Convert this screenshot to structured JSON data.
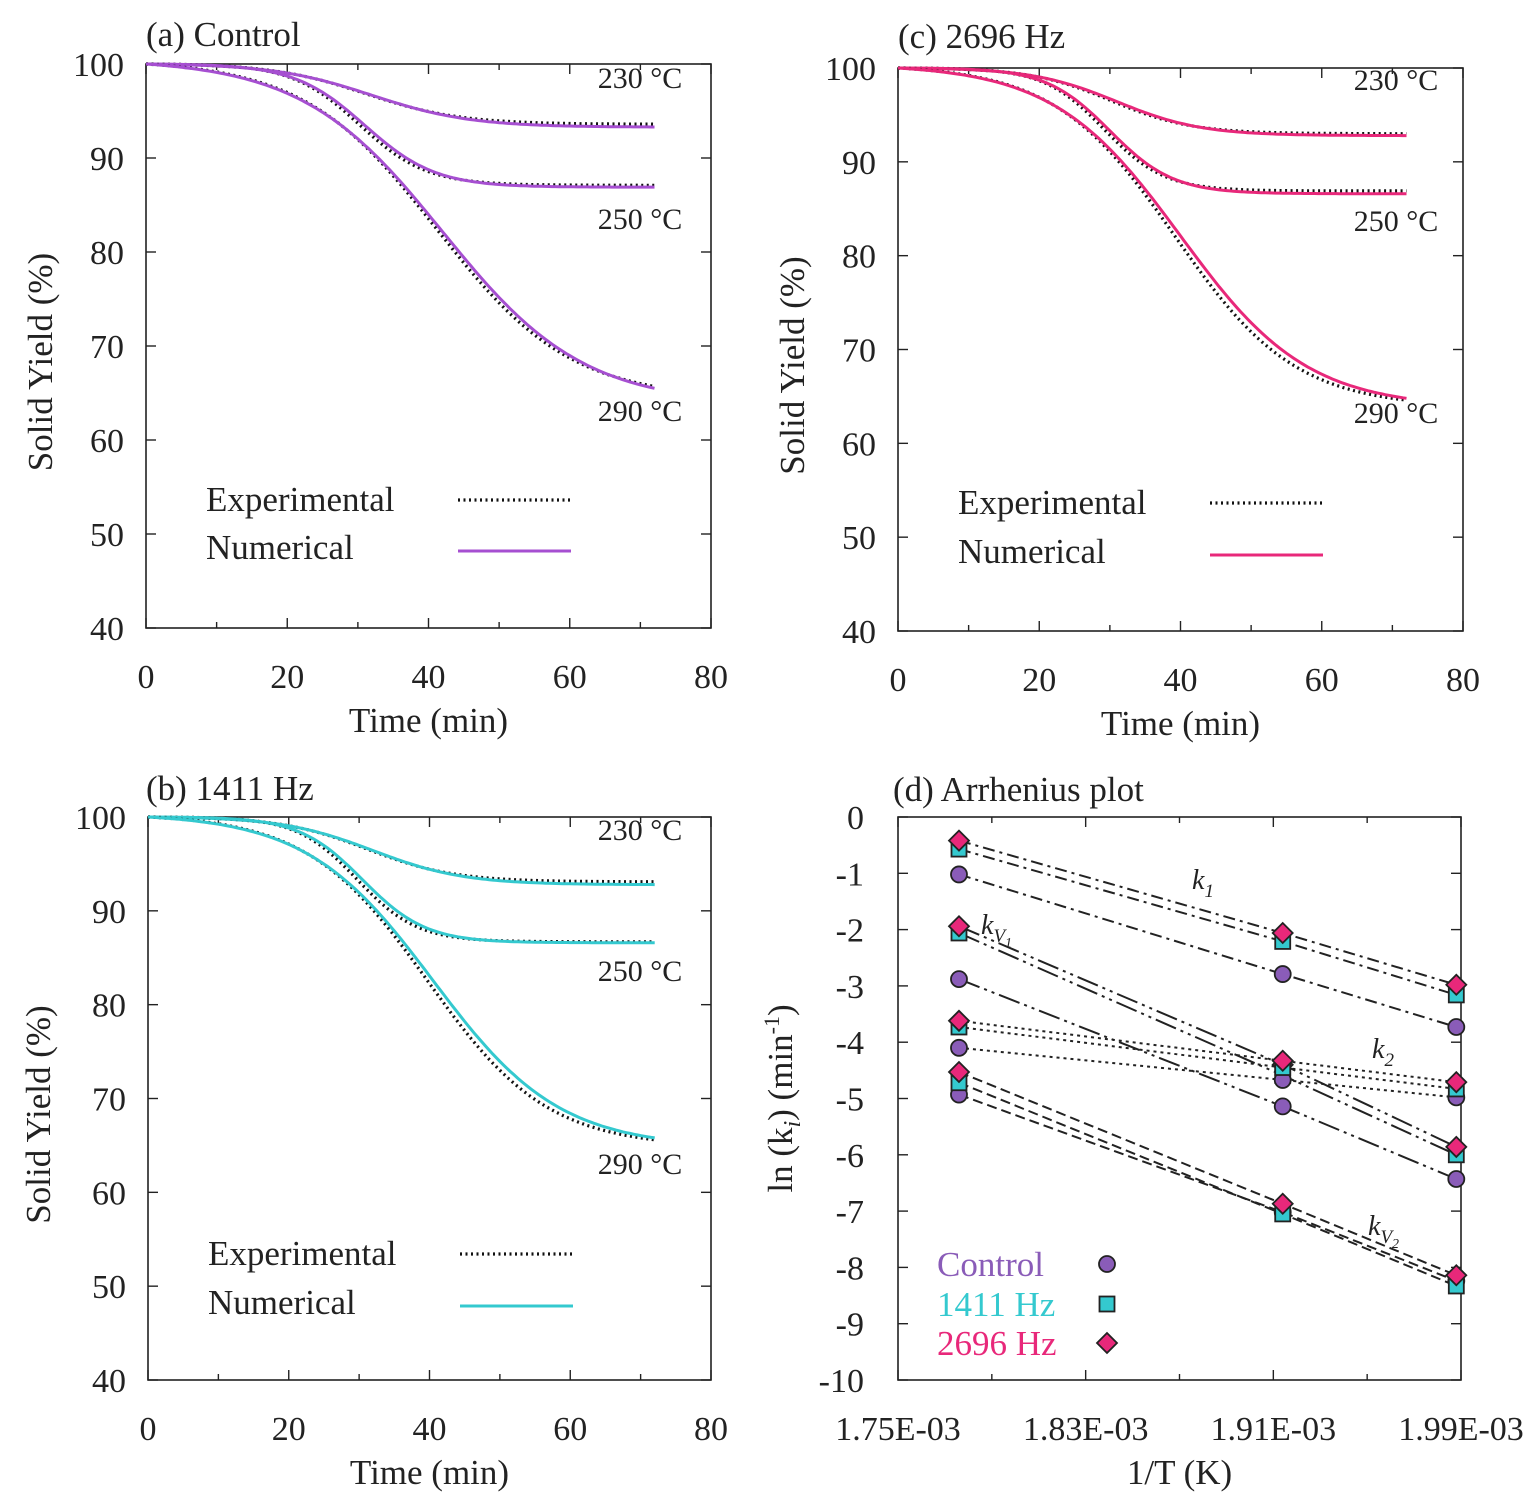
{
  "chart_data": [
    {
      "id": "a",
      "type": "line",
      "title": "(a) Control",
      "xlabel": "Time (min)",
      "ylabel": "Solid Yield (%)",
      "xlim": [
        0,
        80
      ],
      "ylim": [
        40,
        100
      ],
      "xticks": [
        "0",
        "20",
        "40",
        "60",
        "80"
      ],
      "yticks": [
        "40",
        "50",
        "60",
        "70",
        "80",
        "90",
        "100"
      ],
      "numerical_color": "#a64fd1",
      "legend": {
        "experimental": "Experimental",
        "numerical": "Numerical"
      },
      "series": [
        {
          "name": "230 °C",
          "label": "230 °C",
          "final": 93.3,
          "t50": 32,
          "w": 7,
          "exp_final": 93.6
        },
        {
          "name": "250 °C",
          "label": "250 °C",
          "final": 86.9,
          "t50": 31,
          "w": 5,
          "exp_final": 87.1
        },
        {
          "name": "290 °C",
          "label": "290 °C",
          "final": 65.5,
          "t50": 42,
          "w": 10,
          "exp_final": 65.7
        }
      ]
    },
    {
      "id": "b",
      "type": "line",
      "title": "(b) 1411 Hz",
      "xlabel": "Time (min)",
      "ylabel": "Solid Yield (%)",
      "xlim": [
        0,
        80
      ],
      "ylim": [
        40,
        100
      ],
      "xticks": [
        "0",
        "20",
        "40",
        "60",
        "80"
      ],
      "yticks": [
        "40",
        "50",
        "60",
        "70",
        "80",
        "90",
        "100"
      ],
      "numerical_color": "#34c9cf",
      "legend": {
        "experimental": "Experimental",
        "numerical": "Numerical"
      },
      "series": [
        {
          "name": "230 °C",
          "label": "230 °C",
          "final": 92.8,
          "t50": 32,
          "w": 6.5,
          "exp_final": 93.1
        },
        {
          "name": "250 °C",
          "label": "250 °C",
          "final": 86.6,
          "t50": 30.5,
          "w": 4.5,
          "exp_final": 86.7
        },
        {
          "name": "290 °C",
          "label": "290 °C",
          "final": 65.8,
          "t50": 40.5,
          "w": 9,
          "exp_final": 65.6
        }
      ]
    },
    {
      "id": "c",
      "type": "line",
      "title": "(c) 2696 Hz",
      "xlabel": "Time (min)",
      "ylabel": "Solid Yield (%)",
      "xlim": [
        0,
        80
      ],
      "ylim": [
        40,
        100
      ],
      "xticks": [
        "0",
        "20",
        "40",
        "60",
        "80"
      ],
      "yticks": [
        "40",
        "50",
        "60",
        "70",
        "80",
        "90",
        "100"
      ],
      "numerical_color": "#e8287a",
      "legend": {
        "experimental": "Experimental",
        "numerical": "Numerical"
      },
      "series": [
        {
          "name": "230 °C",
          "label": "230 °C",
          "final": 92.8,
          "t50": 31,
          "w": 6,
          "exp_final": 93.0
        },
        {
          "name": "250 °C",
          "label": "250 °C",
          "final": 86.6,
          "t50": 30,
          "w": 4.5,
          "exp_final": 86.9
        },
        {
          "name": "290 °C",
          "label": "290 °C",
          "final": 64.8,
          "t50": 40,
          "w": 9,
          "exp_final": 64.6
        }
      ]
    },
    {
      "id": "d",
      "type": "scatter",
      "title": "(d) Arrhenius plot",
      "xlabel": "1/T (K)",
      "ylabel": "ln (k",
      "ylabel_sub": "i",
      "ylabel_tail": ") (min",
      "ylabel_sup": "-1",
      "ylabel_end": ")",
      "xlim": [
        0.00175,
        0.00199
      ],
      "ylim": [
        -10,
        0
      ],
      "xticks": [
        {
          "value": 0.00175,
          "label": "1.75E-03"
        },
        {
          "value": 0.00183,
          "label": "1.83E-03"
        },
        {
          "value": 0.00191,
          "label": "1.91E-03"
        },
        {
          "value": 0.00199,
          "label": "1.99E-03"
        }
      ],
      "yticks": [
        "0",
        "-1",
        "-2",
        "-3",
        "-4",
        "-5",
        "-6",
        "-7",
        "-8",
        "-9",
        "-10"
      ],
      "x": [
        0.001776,
        0.001914,
        0.001988
      ],
      "groups": [
        {
          "name": "Control",
          "marker": "circle",
          "color": "#8a5cb8"
        },
        {
          "name": "1411 Hz",
          "marker": "square",
          "color": "#34c9cf"
        },
        {
          "name": "2696 Hz",
          "marker": "diamond",
          "color": "#e8287a"
        }
      ],
      "constants": [
        {
          "name": "k1",
          "label": "k",
          "sub": "1",
          "dash": "12 5 3 5",
          "values": {
            "Control": [
              -1.02,
              -2.79,
              -3.73
            ],
            "1411 Hz": [
              -0.57,
              -2.21,
              -3.16
            ],
            "2696 Hz": [
              -0.42,
              -2.06,
              -2.98
            ]
          }
        },
        {
          "name": "kV1",
          "label": "k",
          "sub": "V",
          "subsub": "1",
          "dash": "22 5 3 5 3 5",
          "values": {
            "Control": [
              -2.88,
              -5.14,
              -6.43
            ],
            "1411 Hz": [
              -2.06,
              -4.59,
              -6.0
            ],
            "2696 Hz": [
              -1.94,
              -4.4,
              -5.86
            ]
          }
        },
        {
          "name": "k2",
          "label": "k",
          "sub": "2",
          "dash": "3 4",
          "values": {
            "Control": [
              -4.1,
              -4.67,
              -4.98
            ],
            "1411 Hz": [
              -3.73,
              -4.45,
              -4.83
            ],
            "2696 Hz": [
              -3.62,
              -4.33,
              -4.71
            ]
          }
        },
        {
          "name": "kV2",
          "label": "k",
          "sub": "V",
          "subsub": "2",
          "dash": "10 5",
          "values": {
            "Control": [
              -4.93,
              -7.02,
              -8.24
            ],
            "1411 Hz": [
              -4.72,
              -7.05,
              -8.33
            ],
            "2696 Hz": [
              -4.53,
              -6.87,
              -8.14
            ]
          }
        }
      ]
    }
  ]
}
